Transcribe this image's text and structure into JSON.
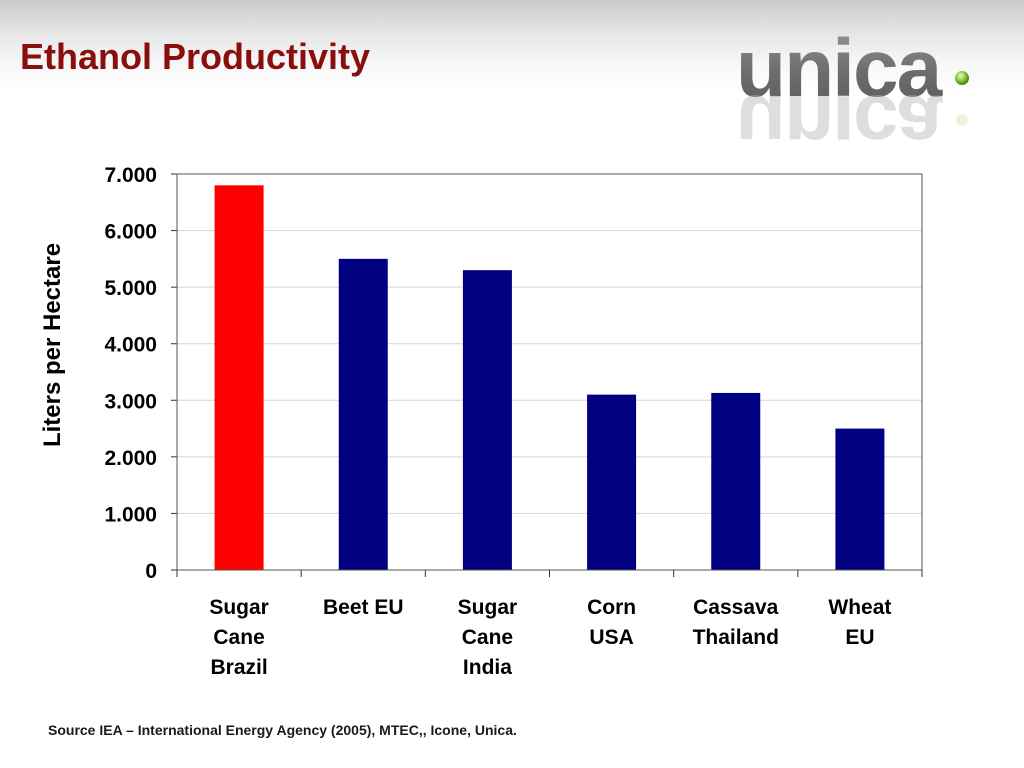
{
  "slide": {
    "title": "Ethanol Productivity",
    "logo_text": "unica",
    "source": "Source IEA – International Energy Agency (2005), MTEC,, Icone, Unica."
  },
  "colors": {
    "title": "#8b0e0e",
    "highlight_bar": "#ff0000",
    "default_bar": "#000080"
  },
  "chart_data": {
    "type": "bar",
    "title": "",
    "xlabel": "",
    "ylabel": "Liters per Hectare",
    "ylim": [
      0,
      7000
    ],
    "yticks": [
      0,
      1000,
      2000,
      3000,
      4000,
      5000,
      6000,
      7000
    ],
    "ytick_labels": [
      "0",
      "1.000",
      "2.000",
      "3.000",
      "4.000",
      "5.000",
      "6.000",
      "7.000"
    ],
    "grid": true,
    "legend": "none",
    "categories": [
      [
        "Sugar",
        "Cane",
        "Brazil"
      ],
      [
        "Beet EU"
      ],
      [
        "Sugar",
        "Cane",
        "India"
      ],
      [
        "Corn",
        "USA"
      ],
      [
        "Cassava",
        "Thailand"
      ],
      [
        "Wheat",
        "EU"
      ]
    ],
    "values": [
      6800,
      5500,
      5300,
      3100,
      3130,
      2500
    ],
    "bar_colors": [
      "#ff0000",
      "#000080",
      "#000080",
      "#000080",
      "#000080",
      "#000080"
    ]
  }
}
